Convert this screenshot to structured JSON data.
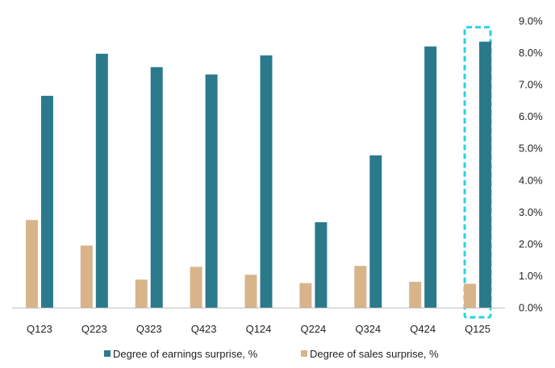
{
  "chart_data": {
    "type": "bar",
    "categories": [
      "Q123",
      "Q223",
      "Q323",
      "Q423",
      "Q124",
      "Q224",
      "Q324",
      "Q424",
      "Q125"
    ],
    "series": [
      {
        "name": "Degree of sales surprise, %",
        "values": [
          2.75,
          1.95,
          0.88,
          1.28,
          1.03,
          0.77,
          1.31,
          0.81,
          0.75
        ],
        "color": "#d8b48b"
      },
      {
        "name": "Degree of earnings surprise, %",
        "values": [
          6.65,
          7.97,
          7.55,
          7.32,
          7.92,
          2.68,
          4.78,
          8.2,
          8.35
        ],
        "color": "#2b7a8c"
      }
    ],
    "legend_order": [
      1,
      0
    ],
    "y_ticks": [
      "0.0%",
      "1.0%",
      "2.0%",
      "3.0%",
      "4.0%",
      "5.0%",
      "6.0%",
      "7.0%",
      "8.0%",
      "9.0%"
    ],
    "ylim": [
      0,
      9
    ],
    "y_axis_position": "right",
    "grid": false,
    "legend_position": "bottom-center",
    "highlight": {
      "category": "Q125",
      "color": "#27d3e3",
      "style": "dashed box"
    }
  }
}
